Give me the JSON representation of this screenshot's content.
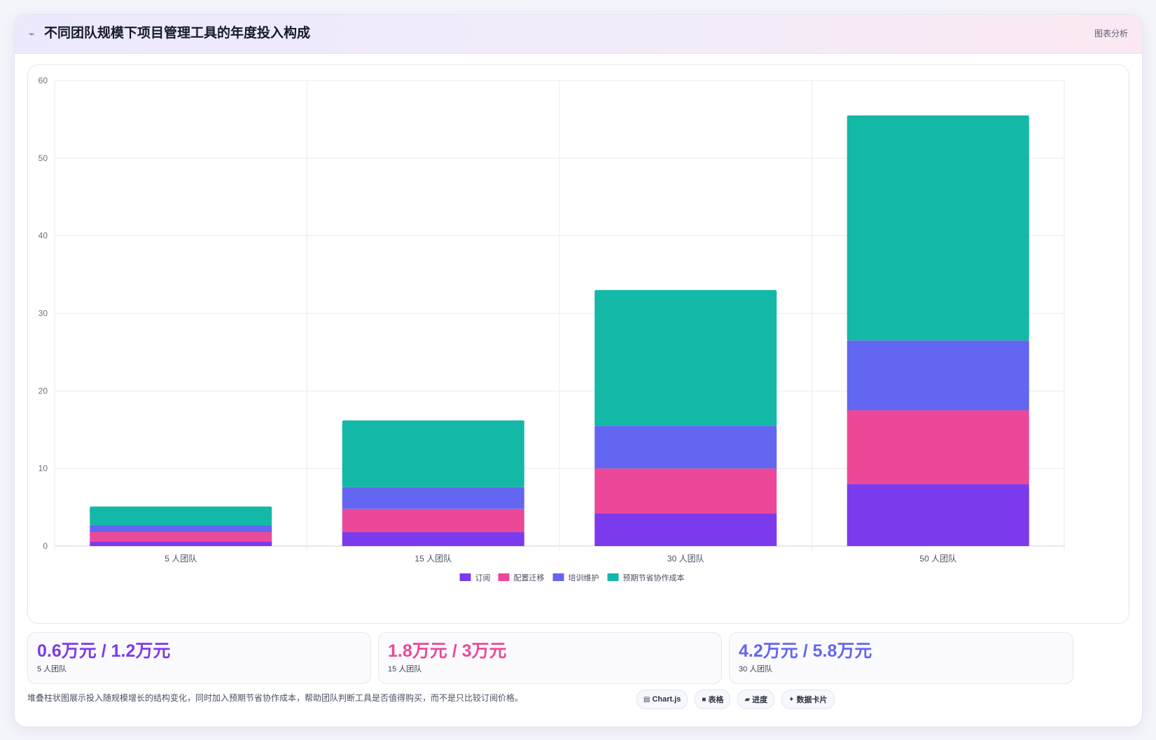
{
  "header": {
    "icon": "trend-line-icon",
    "title": "不同团队规模下项目管理工具的年度投入构成",
    "tag": "图表分析"
  },
  "chart_data": {
    "type": "bar",
    "stacked": true,
    "categories": [
      "5 人团队",
      "15 人团队",
      "30 人团队",
      "50 人团队"
    ],
    "series": [
      {
        "name": "订阅",
        "color": "#7c3aed",
        "values": [
          0.6,
          1.8,
          4.2,
          8.0
        ]
      },
      {
        "name": "配置迁移",
        "color": "#ec4899",
        "values": [
          1.2,
          3.0,
          5.8,
          9.5
        ]
      },
      {
        "name": "培训维护",
        "color": "#6366f1",
        "values": [
          0.9,
          2.8,
          5.5,
          9.0
        ]
      },
      {
        "name": "预期节省协作成本",
        "color": "#14b8a6",
        "values": [
          2.4,
          8.6,
          17.5,
          29.0
        ]
      }
    ],
    "ylim": [
      0,
      60
    ],
    "yticks": [
      0,
      10,
      20,
      30,
      40,
      50,
      60
    ],
    "grid": true,
    "legend": "bottom"
  },
  "stats": [
    {
      "value": "0.6万元 / 1.2万元",
      "label": "5 人团队",
      "color": "#7c3aed"
    },
    {
      "value": "1.8万元 / 3万元",
      "label": "15 人团队",
      "color": "#ec4899"
    },
    {
      "value": "4.2万元 / 5.8万元",
      "label": "30 人团队",
      "color": "#6366f1"
    }
  ],
  "footnote": "堆叠柱状图展示投入随规模增长的结构变化，同时加入预期节省协作成本，帮助团队判断工具是否值得购买，而不是只比较订阅价格。",
  "chips": [
    {
      "icon": "▤",
      "icon_name": "chart-icon",
      "label": "Chart.js"
    },
    {
      "icon": "■",
      "icon_name": "table-icon",
      "label": "表格"
    },
    {
      "icon": "▰",
      "icon_name": "progress-icon",
      "label": "进度"
    },
    {
      "icon": "✦",
      "icon_name": "sparkle-icon",
      "label": "数据卡片"
    }
  ]
}
